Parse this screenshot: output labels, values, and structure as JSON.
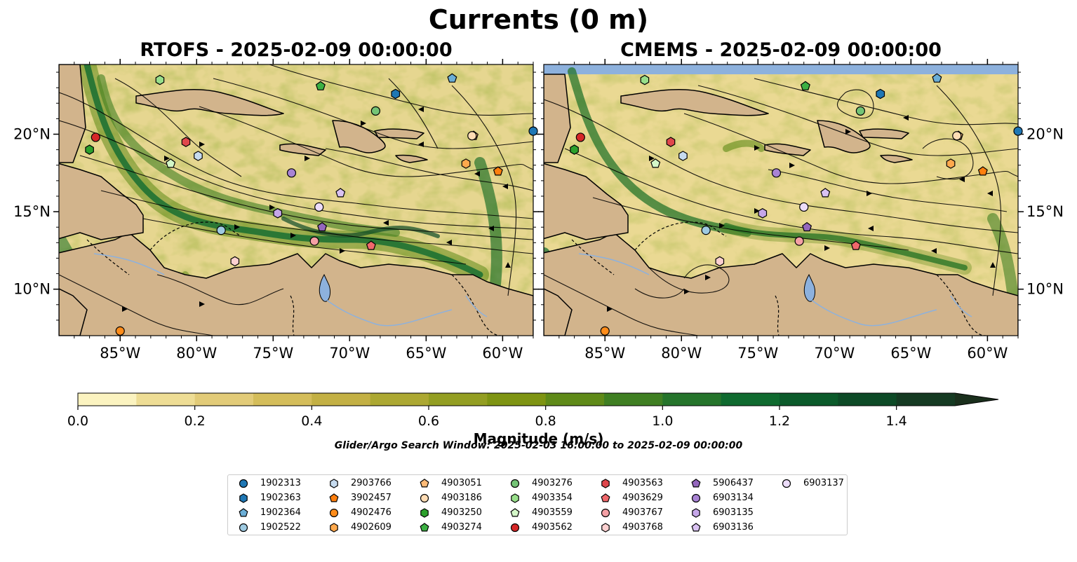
{
  "title": "Currents (0 m)",
  "panels": [
    {
      "title": "RTOFS - 2025-02-09 00:00:00"
    },
    {
      "title": "CMEMS - 2025-02-09 00:00:00"
    }
  ],
  "map_axes": {
    "lon_ticks": [
      "85°W",
      "80°W",
      "75°W",
      "70°W",
      "65°W",
      "60°W"
    ],
    "lat_ticks": [
      "20°N",
      "15°N",
      "10°N"
    ],
    "lon_range": [
      -89,
      -58
    ],
    "lat_range": [
      7,
      24.5
    ]
  },
  "colorbar": {
    "label": "Magnitude (m/s)",
    "ticks": [
      "0.0",
      "0.2",
      "0.4",
      "0.6",
      "0.8",
      "1.0",
      "1.2",
      "1.4"
    ],
    "range": [
      0,
      1.5
    ],
    "extend": "max",
    "colors": [
      "#fbf3c0",
      "#eedd95",
      "#e2cb78",
      "#d4bd5a",
      "#c3b044",
      "#aca832",
      "#939e22",
      "#7e9412",
      "#5f8a18",
      "#3f7f22",
      "#25742b",
      "#0f6a2f",
      "#0b5a2a",
      "#0d4a26",
      "#153a22",
      "#1a2f1c"
    ]
  },
  "search_window": "Glider/Argo Search Window: 2025-02-03 16:00:00 to 2025-02-09 00:00:00",
  "legend": [
    {
      "id": "1902313",
      "color": "#1f77b4",
      "marker": "circle"
    },
    {
      "id": "1902363",
      "color": "#1f77b4",
      "marker": "hexagon"
    },
    {
      "id": "1902364",
      "color": "#6baed6",
      "marker": "pentagon"
    },
    {
      "id": "1902522",
      "color": "#9ecae1",
      "marker": "circle"
    },
    {
      "id": "2903766",
      "color": "#c6dbef",
      "marker": "hexagon"
    },
    {
      "id": "3902457",
      "color": "#ff7f0e",
      "marker": "pentagon"
    },
    {
      "id": "4902476",
      "color": "#ff8c1a",
      "marker": "circle"
    },
    {
      "id": "4902609",
      "color": "#ffa94d",
      "marker": "hexagon"
    },
    {
      "id": "4903051",
      "color": "#ffbb78",
      "marker": "pentagon"
    },
    {
      "id": "4903186",
      "color": "#ffdcb4",
      "marker": "circle"
    },
    {
      "id": "4903250",
      "color": "#2ca02c",
      "marker": "hexagon"
    },
    {
      "id": "4903274",
      "color": "#3cb043",
      "marker": "pentagon"
    },
    {
      "id": "4903276",
      "color": "#74c476",
      "marker": "circle"
    },
    {
      "id": "4903354",
      "color": "#98df8a",
      "marker": "hexagon"
    },
    {
      "id": "4903559",
      "color": "#d4f7c8",
      "marker": "pentagon"
    },
    {
      "id": "4903562",
      "color": "#d62728",
      "marker": "circle"
    },
    {
      "id": "4903563",
      "color": "#e0474c",
      "marker": "hexagon"
    },
    {
      "id": "4903629",
      "color": "#f0686b",
      "marker": "pentagon"
    },
    {
      "id": "4903767",
      "color": "#f4a0a5",
      "marker": "circle"
    },
    {
      "id": "4903768",
      "color": "#fcd0d0",
      "marker": "hexagon"
    },
    {
      "id": "5906437",
      "color": "#9467bd",
      "marker": "pentagon"
    },
    {
      "id": "6903134",
      "color": "#a883d4",
      "marker": "circle"
    },
    {
      "id": "6903135",
      "color": "#c5a6e8",
      "marker": "hexagon"
    },
    {
      "id": "6903136",
      "color": "#d9c2f2",
      "marker": "pentagon"
    },
    {
      "id": "6903137",
      "color": "#ecdcfa",
      "marker": "circle"
    }
  ],
  "floats": [
    {
      "id": "1902313",
      "lon": -58.0,
      "lat": 20.2
    },
    {
      "id": "1902363",
      "lon": -67.0,
      "lat": 22.6
    },
    {
      "id": "1902364",
      "lon": -63.3,
      "lat": 23.6
    },
    {
      "id": "1902522",
      "lon": -78.4,
      "lat": 13.8
    },
    {
      "id": "2903766",
      "lon": -79.9,
      "lat": 18.6
    },
    {
      "id": "3902457",
      "lon": -60.3,
      "lat": 17.6
    },
    {
      "id": "4902476",
      "lon": -85.0,
      "lat": 7.3
    },
    {
      "id": "4902609",
      "lon": -62.4,
      "lat": 18.1
    },
    {
      "id": "4903051",
      "lon": -61.9,
      "lat": 19.9
    },
    {
      "id": "4903186",
      "lon": -62.0,
      "lat": 19.9
    },
    {
      "id": "4903250",
      "lon": -87.0,
      "lat": 19.0
    },
    {
      "id": "4903274",
      "lon": -71.9,
      "lat": 23.1
    },
    {
      "id": "4903276",
      "lon": -68.3,
      "lat": 21.5
    },
    {
      "id": "4903354",
      "lon": -82.4,
      "lat": 23.5
    },
    {
      "id": "4903559",
      "lon": -81.7,
      "lat": 18.1
    },
    {
      "id": "4903562",
      "lon": -86.6,
      "lat": 19.8
    },
    {
      "id": "4903563",
      "lon": -80.7,
      "lat": 19.5
    },
    {
      "id": "4903629",
      "lon": -68.6,
      "lat": 12.8
    },
    {
      "id": "4903767",
      "lon": -72.3,
      "lat": 13.1
    },
    {
      "id": "4903768",
      "lon": -77.5,
      "lat": 11.8
    },
    {
      "id": "5906437",
      "lon": -71.8,
      "lat": 14.0
    },
    {
      "id": "6903134",
      "lon": -73.8,
      "lat": 17.5
    },
    {
      "id": "6903135",
      "lon": -74.7,
      "lat": 14.9
    },
    {
      "id": "6903136",
      "lon": -70.6,
      "lat": 16.2
    },
    {
      "id": "6903137",
      "lon": -72.0,
      "lat": 15.3
    }
  ]
}
